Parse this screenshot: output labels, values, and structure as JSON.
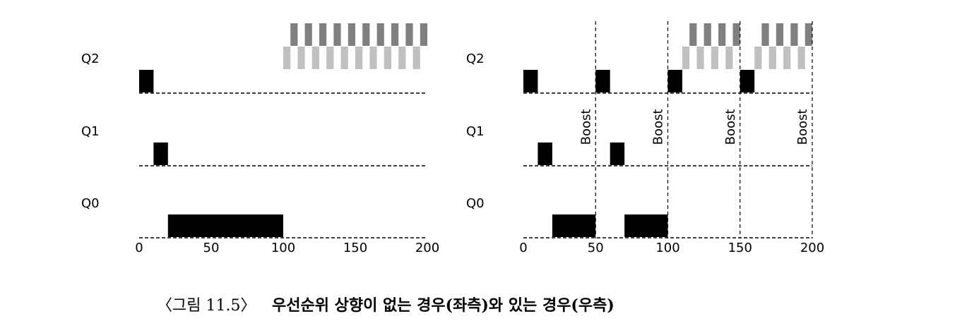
{
  "chart_data": [
    {
      "type": "timeline",
      "rows": [
        {
          "label": "Q2",
          "groups": [
            {
              "color": "#000000",
              "spans": [
                [
                  0,
                  10
                ]
              ]
            },
            {
              "color": "#c0c0c0",
              "spans": [
                [
                  100,
                  105
                ],
                [
                  110,
                  115
                ],
                [
                  120,
                  125
                ],
                [
                  130,
                  135
                ],
                [
                  140,
                  145
                ],
                [
                  150,
                  155
                ],
                [
                  160,
                  165
                ],
                [
                  170,
                  175
                ],
                [
                  180,
                  185
                ],
                [
                  190,
                  195
                ]
              ]
            },
            {
              "color": "#808080",
              "spans": [
                [
                  105,
                  110
                ],
                [
                  115,
                  120
                ],
                [
                  125,
                  130
                ],
                [
                  135,
                  140
                ],
                [
                  145,
                  150
                ],
                [
                  155,
                  160
                ],
                [
                  165,
                  170
                ],
                [
                  175,
                  180
                ],
                [
                  185,
                  190
                ],
                [
                  195,
                  200
                ]
              ]
            }
          ]
        },
        {
          "label": "Q1",
          "groups": [
            {
              "color": "#000000",
              "spans": [
                [
                  10,
                  20
                ]
              ]
            }
          ]
        },
        {
          "label": "Q0",
          "groups": [
            {
              "color": "#000000",
              "spans": [
                [
                  20,
                  100
                ]
              ]
            }
          ]
        }
      ],
      "xlim": [
        0,
        200
      ],
      "xticks": [
        0,
        50,
        100,
        150,
        200
      ]
    },
    {
      "type": "timeline",
      "rows": [
        {
          "label": "Q2",
          "groups": [
            {
              "color": "#000000",
              "spans": [
                [
                  0,
                  10
                ],
                [
                  50,
                  60
                ],
                [
                  100,
                  110
                ],
                [
                  150,
                  160
                ]
              ]
            },
            {
              "color": "#c0c0c0",
              "spans": [
                [
                  110,
                  115
                ],
                [
                  120,
                  125
                ],
                [
                  130,
                  135
                ],
                [
                  140,
                  145
                ],
                [
                  160,
                  165
                ],
                [
                  170,
                  175
                ],
                [
                  180,
                  185
                ],
                [
                  190,
                  195
                ]
              ]
            },
            {
              "color": "#808080",
              "spans": [
                [
                  115,
                  120
                ],
                [
                  125,
                  130
                ],
                [
                  135,
                  140
                ],
                [
                  145,
                  150
                ],
                [
                  165,
                  170
                ],
                [
                  175,
                  180
                ],
                [
                  185,
                  190
                ],
                [
                  195,
                  200
                ]
              ]
            }
          ]
        },
        {
          "label": "Q1",
          "groups": [
            {
              "color": "#000000",
              "spans": [
                [
                  10,
                  20
                ],
                [
                  60,
                  70
                ]
              ]
            }
          ]
        },
        {
          "label": "Q0",
          "groups": [
            {
              "color": "#000000",
              "spans": [
                [
                  20,
                  50
                ],
                [
                  70,
                  100
                ]
              ]
            }
          ]
        }
      ],
      "boost_label": "Boost",
      "boosts": [
        50,
        100,
        150,
        200
      ],
      "xlim": [
        0,
        200
      ],
      "xticks": [
        0,
        50,
        100,
        150,
        200
      ]
    }
  ],
  "caption": {
    "figure": "〈그림 11.5〉",
    "text": "우선순위 상향이 없는 경우(좌측)와 있는 경우(우측)"
  }
}
